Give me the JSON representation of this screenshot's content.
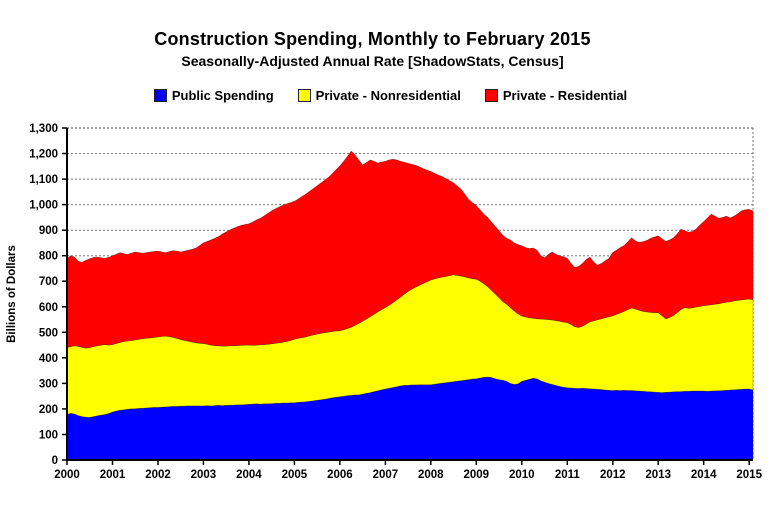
{
  "header": {
    "title": "Construction Spending, Monthly to February 2015",
    "subtitle": "Seasonally-Adjusted Annual Rate [ShadowStats, Census]"
  },
  "chart_data": {
    "type": "area",
    "stacked": true,
    "title": "Construction Spending, Monthly to February 2015",
    "subtitle": "Seasonally-Adjusted Annual Rate [ShadowStats, Census]",
    "ylabel": "Billions of Dollars",
    "ylim": [
      0,
      1300
    ],
    "grid": "horizontal-dotted",
    "legend_position": "top",
    "x_unit": "month",
    "x_range": [
      "2000-01",
      "2015-02"
    ],
    "n_points": 182,
    "y_tick_values": [
      0,
      100,
      200,
      300,
      400,
      500,
      600,
      700,
      800,
      900,
      1000,
      1100,
      1200,
      1300
    ],
    "y_tick_labels": [
      "0",
      "100",
      "200",
      "300",
      "400",
      "500",
      "600",
      "700",
      "800",
      "900",
      "1,000",
      "1,100",
      "1,200",
      "1,300"
    ],
    "x_tick_labels": [
      "2000",
      "2001",
      "2002",
      "2003",
      "2004",
      "2005",
      "2006",
      "2007",
      "2008",
      "2009",
      "2010",
      "2011",
      "2012",
      "2013",
      "2014",
      "2015"
    ],
    "series": [
      {
        "name": "Public Spending",
        "color": "#0000FF",
        "values": [
          178,
          183,
          180,
          174,
          170,
          168,
          167,
          170,
          173,
          176,
          178,
          182,
          188,
          192,
          195,
          197,
          199,
          200,
          201,
          202,
          203,
          204,
          205,
          206,
          206,
          207,
          208,
          209,
          210,
          210,
          211,
          211,
          212,
          212,
          212,
          212,
          212,
          213,
          212,
          213,
          214,
          213,
          214,
          215,
          215,
          216,
          216,
          217,
          218,
          219,
          220,
          219,
          220,
          220,
          221,
          222,
          222,
          223,
          223,
          224,
          224,
          226,
          227,
          228,
          230,
          232,
          234,
          236,
          238,
          241,
          244,
          246,
          248,
          250,
          252,
          253,
          255,
          255,
          258,
          261,
          264,
          268,
          271,
          275,
          278,
          281,
          284,
          287,
          290,
          292,
          293,
          294,
          294,
          295,
          295,
          295,
          295,
          297,
          299,
          301,
          303,
          305,
          307,
          309,
          311,
          313,
          315,
          317,
          318,
          321,
          324,
          325,
          323,
          318,
          315,
          312,
          308,
          300,
          296,
          298,
          308,
          312,
          316,
          320,
          318,
          310,
          305,
          300,
          296,
          292,
          288,
          285,
          283,
          282,
          281,
          280,
          281,
          280,
          279,
          278,
          277,
          276,
          274,
          273,
          272,
          273,
          272,
          273,
          272,
          272,
          271,
          270,
          269,
          268,
          267,
          266,
          265,
          264,
          265,
          266,
          267,
          268,
          268,
          269,
          269,
          270,
          270,
          270,
          270,
          269,
          270,
          271,
          271,
          272,
          273,
          274,
          275,
          276,
          277,
          278,
          278,
          275
        ]
      },
      {
        "name": "Private - Nonresidential",
        "color": "#FFFF00",
        "values": [
          262,
          261,
          267,
          271,
          271,
          270,
          273,
          274,
          274,
          274,
          274,
          268,
          264,
          264,
          265,
          267,
          267,
          268,
          269,
          271,
          272,
          273,
          273,
          274,
          276,
          277,
          277,
          274,
          270,
          266,
          261,
          257,
          253,
          250,
          247,
          245,
          244,
          240,
          238,
          235,
          233,
          233,
          232,
          232,
          232,
          232,
          233,
          233,
          232,
          230,
          230,
          232,
          232,
          233,
          234,
          235,
          237,
          238,
          241,
          244,
          249,
          250,
          252,
          254,
          256,
          258,
          259,
          260,
          261,
          260,
          259,
          259,
          258,
          260,
          263,
          267,
          272,
          280,
          285,
          291,
          297,
          302,
          309,
          314,
          319,
          325,
          332,
          340,
          348,
          357,
          367,
          375,
          383,
          389,
          396,
          403,
          410,
          412,
          414,
          415,
          416,
          417,
          418,
          414,
          409,
          404,
          398,
          393,
          390,
          379,
          366,
          353,
          341,
          332,
          320,
          308,
          302,
          296,
          288,
          274,
          256,
          248,
          241,
          235,
          235,
          242,
          246,
          250,
          252,
          254,
          255,
          255,
          255,
          248,
          241,
          239,
          243,
          252,
          262,
          267,
          272,
          277,
          283,
          288,
          293,
          297,
          304,
          309,
          317,
          323,
          320,
          316,
          313,
          312,
          311,
          311,
          312,
          301,
          287,
          292,
          299,
          309,
          321,
          328,
          325,
          326,
          329,
          332,
          334,
          337,
          338,
          339,
          341,
          343,
          345,
          346,
          348,
          349,
          350,
          351,
          352,
          353
        ]
      },
      {
        "name": "Private - Residential",
        "color": "#FF0000",
        "values": [
          350,
          356,
          348,
          333,
          334,
          344,
          348,
          349,
          348,
          342,
          338,
          344,
          348,
          350,
          352,
          344,
          339,
          342,
          345,
          339,
          335,
          335,
          337,
          337,
          336,
          331,
          327,
          333,
          340,
          342,
          343,
          350,
          357,
          363,
          371,
          383,
          394,
          403,
          412,
          420,
          428,
          439,
          447,
          454,
          461,
          466,
          470,
          472,
          475,
          483,
          490,
          496,
          504,
          513,
          521,
          527,
          532,
          537,
          539,
          540,
          540,
          546,
          553,
          559,
          566,
          573,
          581,
          589,
          597,
          606,
          619,
          632,
          646,
          660,
          675,
          690,
          668,
          640,
          612,
          613,
          614,
          600,
          583,
          578,
          573,
          569,
          562,
          548,
          532,
          517,
          502,
          489,
          477,
          464,
          450,
          437,
          425,
          414,
          403,
          394,
          383,
          372,
          360,
          350,
          340,
          323,
          307,
          298,
          288,
          280,
          272,
          272,
          268,
          265,
          263,
          260,
          258,
          266,
          266,
          272,
          275,
          272,
          271,
          275,
          269,
          248,
          241,
          255,
          267,
          260,
          257,
          256,
          252,
          240,
          232,
          239,
          246,
          253,
          254,
          230,
          214,
          217,
          223,
          229,
          248,
          252,
          256,
          258,
          266,
          275,
          267,
          266,
          273,
          280,
          290,
          296,
          301,
          301,
          304,
          304,
          304,
          308,
          315,
          301,
          298,
          299,
          306,
          318,
          330,
          342,
          355,
          345,
          335,
          335,
          337,
          328,
          332,
          340,
          349,
          351,
          352,
          347
        ]
      }
    ]
  }
}
